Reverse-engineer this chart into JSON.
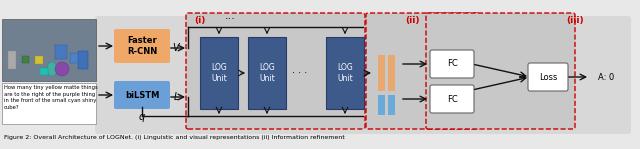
{
  "fig_width": 6.4,
  "fig_height": 1.49,
  "bg_color": "#e8e8e8",
  "inner_bg_color": "#d8d8d8",
  "rcnn_color": "#f0a868",
  "bilstm_color": "#6a9fd8",
  "log_color": "#3d5a8a",
  "fc_bar_orange": "#e8a870",
  "fc_bar_blue": "#6aaad8",
  "fc_box_color": "#ffffff",
  "loss_color": "#ffffff",
  "section_border_color": "#cc0000",
  "arrow_color": "#111111",
  "caption": "Figure 2: Overall Architecture of LOGNet. (i) Linguistic and visual representations (ii) Information refinement"
}
